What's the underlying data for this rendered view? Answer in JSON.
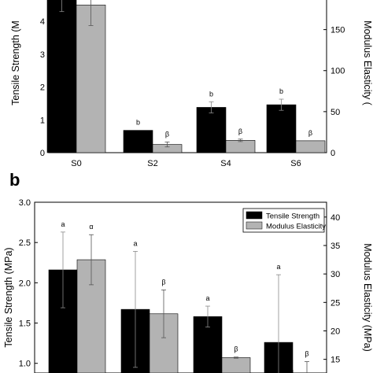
{
  "panel_b_label": "b",
  "chart_data": [
    {
      "panel": "a",
      "type": "bar",
      "categories": [
        "S0",
        "S2",
        "S4",
        "S6"
      ],
      "series": [
        {
          "name": "Tensile Strength",
          "axis": "left",
          "color": "#000000",
          "values": [
            4.7,
            0.68,
            1.38,
            1.46
          ],
          "errors": [
            0.4,
            0.0,
            0.17,
            0.17
          ],
          "annotations": [
            "",
            "b",
            "b",
            "b"
          ]
        },
        {
          "name": "Modulus Elasticity",
          "axis": "right",
          "color": "#b3b3b3",
          "values": [
            180,
            10,
            15,
            14.5
          ],
          "errors": [
            25,
            3,
            1.5,
            0
          ],
          "annotations": [
            "",
            "β",
            "β",
            "β"
          ]
        }
      ],
      "ylabel": "Tensile Strength (M",
      "ylabel_right": "Modulus Elasticity (",
      "ylim": [
        0,
        4.7
      ],
      "yticks": [
        0,
        1,
        2,
        3,
        4
      ],
      "ylim_right": [
        0,
        188
      ],
      "yticks_right": [
        0,
        50,
        100,
        150
      ]
    },
    {
      "panel": "b",
      "type": "bar",
      "categories": [
        "",
        "",
        "",
        ""
      ],
      "series": [
        {
          "name": "Tensile Strength",
          "axis": "left",
          "color": "#000000",
          "values": [
            2.16,
            1.67,
            1.58,
            1.26
          ],
          "errors": [
            0.47,
            0.72,
            0.13,
            0.84
          ],
          "annotations": [
            "a",
            "a",
            "a",
            "a"
          ]
        },
        {
          "name": "Modulus Elasticity",
          "axis": "right",
          "color": "#b3b3b3",
          "values": [
            32.5,
            23.0,
            15.3,
            12.0
          ],
          "errors": [
            4.4,
            4.2,
            0.1,
            2.6
          ],
          "annotations": [
            "α",
            "β",
            "β",
            "β"
          ]
        }
      ],
      "ylabel": "Tensile Strength (MPa)",
      "ylabel_right": "Modulus Elasticity (MPa)",
      "ylim": [
        0.88,
        3.0
      ],
      "yticks": [
        "1.0",
        "1.5",
        "2.0",
        "2.5",
        "3.0"
      ],
      "ylim_right": [
        12.6,
        42.6
      ],
      "yticks_right": [
        15,
        20,
        25,
        30,
        35,
        40
      ],
      "legend": {
        "position": "top-right",
        "entries": [
          "Tensile Strength",
          "Modulus Elasticity"
        ]
      }
    }
  ]
}
